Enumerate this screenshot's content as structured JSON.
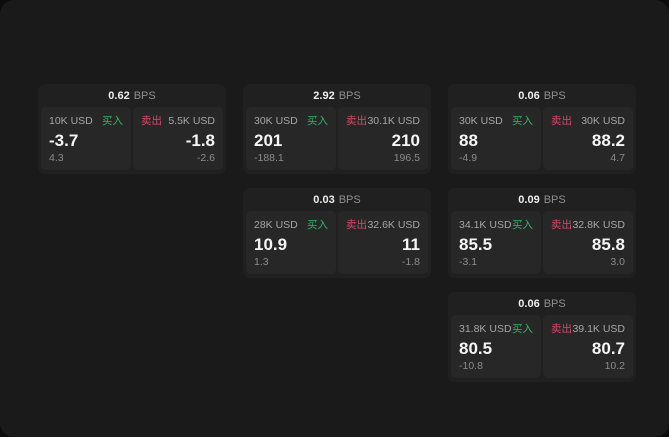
{
  "labels": {
    "bps_unit": "BPS",
    "buy": "买入",
    "sell": "卖出"
  },
  "colors": {
    "buy_green": "#36b269",
    "sell_red": "#d8486b",
    "panel_bg": "#1a1a1a",
    "card_bg": "#202020",
    "subpanel_bg": "#272727"
  },
  "cards": [
    {
      "bps": "0.62",
      "buy": {
        "amount": "10K USD",
        "price": "-3.7",
        "sub": "4.3"
      },
      "sell": {
        "amount": "5.5K USD",
        "price": "-1.8",
        "sub": "-2.6"
      }
    },
    {
      "bps": "2.92",
      "buy": {
        "amount": "30K USD",
        "price": "201",
        "sub": "-188.1"
      },
      "sell": {
        "amount": "30.1K USD",
        "price": "210",
        "sub": "196.5"
      }
    },
    {
      "bps": "0.06",
      "buy": {
        "amount": "30K USD",
        "price": "88",
        "sub": "-4.9"
      },
      "sell": {
        "amount": "30K USD",
        "price": "88.2",
        "sub": "4.7"
      }
    },
    {
      "bps": "0.03",
      "buy": {
        "amount": "28K USD",
        "price": "10.9",
        "sub": "1.3"
      },
      "sell": {
        "amount": "32.6K USD",
        "price": "11",
        "sub": "-1.8"
      }
    },
    {
      "bps": "0.09",
      "buy": {
        "amount": "34.1K USD",
        "price": "85.5",
        "sub": "-3.1"
      },
      "sell": {
        "amount": "32.8K USD",
        "price": "85.8",
        "sub": "3.0"
      }
    },
    {
      "bps": "0.06",
      "buy": {
        "amount": "31.8K USD",
        "price": "80.5",
        "sub": "-10.8"
      },
      "sell": {
        "amount": "39.1K USD",
        "price": "80.7",
        "sub": "10.2"
      }
    }
  ]
}
